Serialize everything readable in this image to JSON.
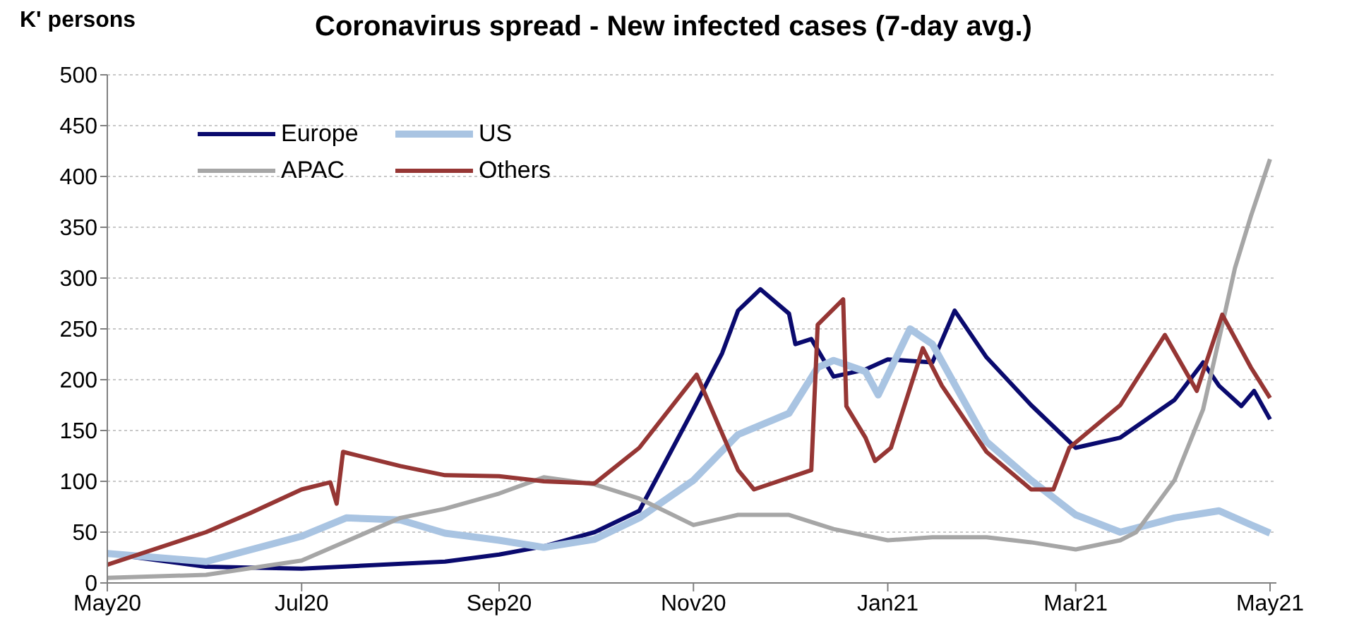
{
  "chart_data": {
    "type": "line",
    "title": "Coronavirus spread  - New infected cases (7-day avg.)",
    "ylabel": "K' persons",
    "xlim": [
      "2020-05-01",
      "2021-05-03"
    ],
    "xticks": [
      {
        "value": "2020-05-01",
        "label": "May20"
      },
      {
        "value": "2020-07-01",
        "label": "Jul20"
      },
      {
        "value": "2020-09-01",
        "label": "Sep20"
      },
      {
        "value": "2020-11-01",
        "label": "Nov20"
      },
      {
        "value": "2021-01-01",
        "label": "Jan21"
      },
      {
        "value": "2021-03-01",
        "label": "Mar21"
      },
      {
        "value": "2021-05-01",
        "label": "May21"
      }
    ],
    "ylim": [
      0,
      500
    ],
    "yticks": [
      0,
      50,
      100,
      150,
      200,
      250,
      300,
      350,
      400,
      450,
      500
    ],
    "grid": "y",
    "legend": "top left",
    "marker": "none",
    "line_style": "solid",
    "series": [
      {
        "name": "Europe",
        "color": "#0a0a6e",
        "x": [
          "2020-05-01",
          "2020-06-01",
          "2020-07-01",
          "2020-08-15",
          "2020-09-01",
          "2020-09-15",
          "2020-10-01",
          "2020-10-15",
          "2020-11-01",
          "2020-11-10",
          "2020-11-15",
          "2020-11-22",
          "2020-12-01",
          "2020-12-03",
          "2020-12-08",
          "2020-12-15",
          "2020-12-25",
          "2021-01-01",
          "2021-01-15",
          "2021-01-22",
          "2021-02-01",
          "2021-02-15",
          "2021-03-01",
          "2021-03-15",
          "2021-04-01",
          "2021-04-10",
          "2021-04-15",
          "2021-04-22",
          "2021-04-26",
          "2021-05-01"
        ],
        "values": [
          29,
          16,
          14,
          21,
          28,
          36,
          50,
          71,
          171,
          226,
          268,
          289,
          265,
          235,
          240,
          203,
          210,
          220,
          217,
          268,
          222,
          175,
          133,
          143,
          180,
          217,
          194,
          174,
          189,
          161
        ]
      },
      {
        "name": "US",
        "color": "#a9c4e2",
        "x": [
          "2020-05-01",
          "2020-06-01",
          "2020-07-01",
          "2020-07-15",
          "2020-08-01",
          "2020-08-15",
          "2020-09-01",
          "2020-09-15",
          "2020-10-01",
          "2020-10-15",
          "2020-11-01",
          "2020-11-15",
          "2020-12-01",
          "2020-12-10",
          "2020-12-15",
          "2020-12-25",
          "2020-12-29",
          "2021-01-08",
          "2021-01-15",
          "2021-02-01",
          "2021-02-15",
          "2021-03-01",
          "2021-03-15",
          "2021-04-01",
          "2021-04-15",
          "2021-05-01"
        ],
        "values": [
          29,
          21,
          46,
          64,
          62,
          49,
          42,
          35,
          43,
          64,
          101,
          146,
          167,
          212,
          219,
          208,
          185,
          250,
          235,
          139,
          101,
          67,
          50,
          64,
          71,
          49
        ]
      },
      {
        "name": "APAC",
        "color": "#a6a6a6",
        "x": [
          "2020-05-01",
          "2020-06-01",
          "2020-07-01",
          "2020-07-15",
          "2020-08-01",
          "2020-08-15",
          "2020-09-01",
          "2020-09-15",
          "2020-10-01",
          "2020-10-15",
          "2020-11-01",
          "2020-11-15",
          "2020-12-01",
          "2020-12-15",
          "2021-01-01",
          "2021-01-15",
          "2021-02-01",
          "2021-02-15",
          "2021-03-01",
          "2021-03-15",
          "2021-03-20",
          "2021-04-01",
          "2021-04-10",
          "2021-04-15",
          "2021-04-20",
          "2021-04-25",
          "2021-05-01"
        ],
        "values": [
          5,
          8,
          22,
          41,
          64,
          73,
          88,
          104,
          97,
          83,
          57,
          67,
          67,
          53,
          42,
          45,
          45,
          40,
          33,
          42,
          50,
          101,
          171,
          240,
          310,
          361,
          417
        ]
      },
      {
        "name": "Others",
        "color": "#963634",
        "x": [
          "2020-05-01",
          "2020-06-01",
          "2020-06-15",
          "2020-07-01",
          "2020-07-10",
          "2020-07-12",
          "2020-07-14",
          "2020-08-01",
          "2020-08-15",
          "2020-09-01",
          "2020-09-15",
          "2020-10-01",
          "2020-10-15",
          "2020-11-02",
          "2020-11-15",
          "2020-11-20",
          "2020-12-08",
          "2020-12-10",
          "2020-12-18",
          "2020-12-19",
          "2020-12-25",
          "2020-12-28",
          "2021-01-02",
          "2021-01-12",
          "2021-01-18",
          "2021-02-01",
          "2021-02-15",
          "2021-02-22",
          "2021-02-27",
          "2021-03-15",
          "2021-03-29",
          "2021-04-08",
          "2021-04-16",
          "2021-04-25",
          "2021-05-01"
        ],
        "values": [
          18,
          50,
          69,
          92,
          99,
          78,
          129,
          115,
          106,
          105,
          100,
          98,
          133,
          205,
          111,
          92,
          111,
          254,
          279,
          174,
          143,
          120,
          133,
          231,
          194,
          129,
          92,
          92,
          133,
          175,
          244,
          189,
          264,
          212,
          182
        ]
      }
    ]
  }
}
